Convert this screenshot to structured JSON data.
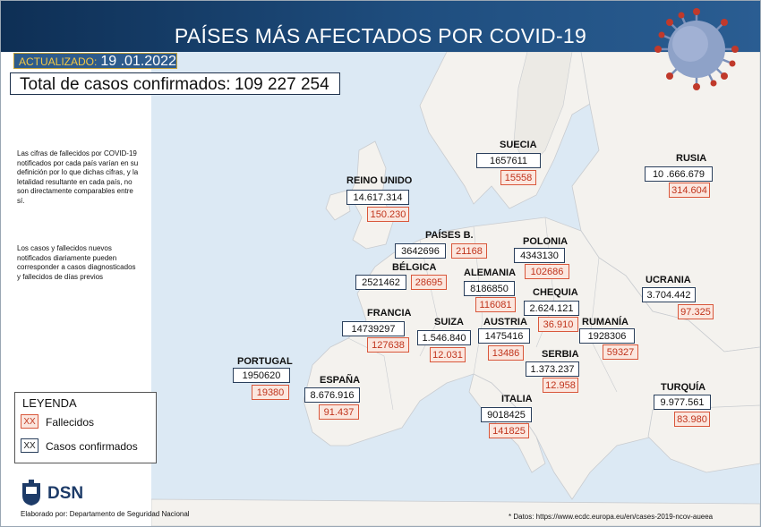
{
  "header": {
    "title": "PAÍSES MÁS AFECTADOS POR COVID-19",
    "updated_label": "ACTUALIZADO:",
    "updated_date": "19 .01.2022"
  },
  "total": {
    "label": "Total de casos confirmados:",
    "value": "109 227 254"
  },
  "notes": [
    "Las cifras de fallecidos por COVID-19 notificados por cada país varían en su definición por lo que dichas cifras, y la letalidad resultante en cada país, no son directamente comparables entre sí.",
    "Los casos y fallecidos nuevos notificados diariamente pueden corresponder a casos diagnosticados y fallecidos de días previos"
  ],
  "legend": {
    "title": "LEYENDA",
    "swatch": "XX",
    "deaths_label": "Fallecidos",
    "cases_label": "Casos confirmados"
  },
  "footer": {
    "logo_text": "DSN",
    "credit": "Elaborado por: Departamento de Seguridad Nacional",
    "source": "* Datos: https://www.ecdc.europa.eu/en/cases-2019-ncov-aueea"
  },
  "colors": {
    "header": "#1f4e7f",
    "sea": "#dce9f4",
    "land": "#f4f2ee",
    "deaths": "#d9573b",
    "cases": "#2a3f5c"
  },
  "countries": {
    "suecia": {
      "name": "SUECIA",
      "cases": "1657611",
      "deaths": "15558"
    },
    "rusia": {
      "name": "RUSIA",
      "cases": "10 .666.679",
      "deaths": "314.604"
    },
    "reino_unido": {
      "name": "REINO UNIDO",
      "cases": "14.617.314",
      "deaths": "150.230"
    },
    "paises_b": {
      "name": "PAÍSES B.",
      "cases": "3642696",
      "deaths": "21168"
    },
    "polonia": {
      "name": "POLONIA",
      "cases": "4343130",
      "deaths": "102686"
    },
    "belgica": {
      "name": "BÉLGICA",
      "cases": "2521462",
      "deaths": "28695"
    },
    "alemania": {
      "name": "ALEMANIA",
      "cases": "8186850",
      "deaths": "116081"
    },
    "chequia": {
      "name": "CHEQUIA",
      "cases": "2.624.121",
      "deaths": "36.910"
    },
    "ucrania": {
      "name": "UCRANIA",
      "cases": "3.704.442",
      "deaths": "97.325"
    },
    "francia": {
      "name": "FRANCIA",
      "cases": "14739297",
      "deaths": "127638"
    },
    "suiza": {
      "name": "SUIZA",
      "cases": "1.546.840",
      "deaths": "12.031"
    },
    "austria": {
      "name": "AUSTRIA",
      "cases": "1475416",
      "deaths": "13486"
    },
    "rumania": {
      "name": "RUMANÍA",
      "cases": "1928306",
      "deaths": "59327"
    },
    "portugal": {
      "name": "PORTUGAL",
      "cases": "1950620",
      "deaths": "19380"
    },
    "serbia": {
      "name": "SERBIA",
      "cases": "1.373.237",
      "deaths": "12.958"
    },
    "espana": {
      "name": "ESPAÑA",
      "cases": "8.676.916",
      "deaths": "91.437"
    },
    "italia": {
      "name": "ITALIA",
      "cases": "9018425",
      "deaths": "141825"
    },
    "turquia": {
      "name": "TURQUÍA",
      "cases": "9.977.561",
      "deaths": "83.980"
    }
  }
}
